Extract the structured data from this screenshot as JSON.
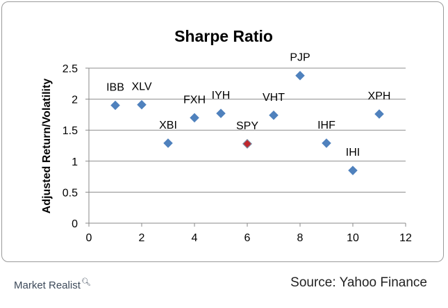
{
  "chart_data": {
    "type": "scatter",
    "title": "Sharpe Ratio",
    "xlabel": "",
    "ylabel": "Adjusted Return/Volatility",
    "xlim": [
      0,
      12
    ],
    "ylim": [
      0,
      2.5
    ],
    "xticks": [
      "0",
      "2",
      "4",
      "6",
      "8",
      "10",
      "12"
    ],
    "yticks": [
      "0",
      "0.5",
      "1",
      "1.5",
      "2",
      "2.5"
    ],
    "grid": "horizontal",
    "legend": "none",
    "points": [
      {
        "label": "IBB",
        "x": 1,
        "y": 1.9
      },
      {
        "label": "XLV",
        "x": 2,
        "y": 1.91
      },
      {
        "label": "XBI",
        "x": 3,
        "y": 1.29
      },
      {
        "label": "FXH",
        "x": 4,
        "y": 1.7
      },
      {
        "label": "IYH",
        "x": 5,
        "y": 1.77
      },
      {
        "label": "SPY",
        "x": 6,
        "y": 1.28,
        "highlight": true
      },
      {
        "label": "VHT",
        "x": 7,
        "y": 1.74
      },
      {
        "label": "PJP",
        "x": 8,
        "y": 2.38
      },
      {
        "label": "IHF",
        "x": 9,
        "y": 1.29
      },
      {
        "label": "IHI",
        "x": 10,
        "y": 0.85
      },
      {
        "label": "XPH",
        "x": 11,
        "y": 1.76
      }
    ],
    "colors": {
      "marker": "#4f81bd",
      "highlight": "#c0282d",
      "gridline": "#8c8c8c"
    }
  },
  "footer": {
    "brand": "Market Realist",
    "brand_icon": "magnifier-icon",
    "source": "Source: Yahoo Finance"
  }
}
